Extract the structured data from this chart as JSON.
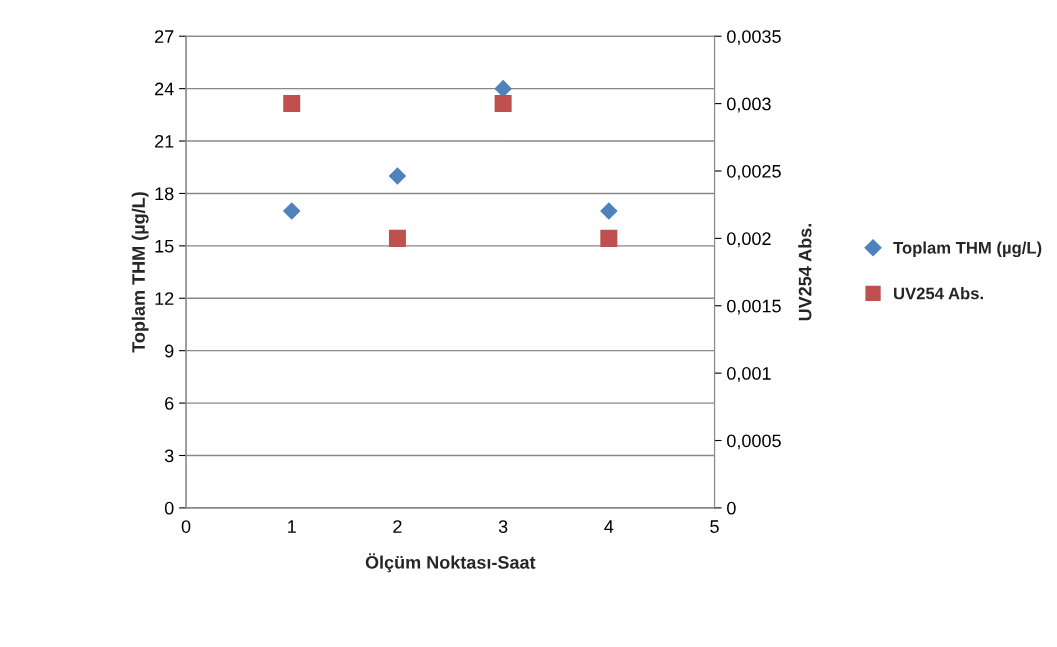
{
  "chart_data": {
    "type": "scatter",
    "xlabel": "Ölçüm Noktası-Saat",
    "ylabel": "Toplam THM (µg/L)",
    "y2label": "UV254 Abs.",
    "x": [
      1,
      2,
      3,
      4
    ],
    "series": [
      {
        "name": "Toplam THM (µg/L)",
        "color": "#4f81bd",
        "marker": "diamond",
        "values": [
          17,
          19,
          24,
          17
        ]
      },
      {
        "name": "UV254 Abs.",
        "color": "#c0504d",
        "marker": "square",
        "axis": "y2",
        "values": [
          0.003,
          0.002,
          0.003,
          0.002
        ]
      }
    ],
    "xlim": [
      0,
      5
    ],
    "xticks": [
      0,
      1,
      2,
      3,
      4,
      5
    ],
    "ylim": [
      0,
      27
    ],
    "yticks": [
      0,
      3,
      6,
      9,
      12,
      15,
      18,
      21,
      24,
      27
    ],
    "y2lim": [
      0,
      0.0035
    ],
    "y2ticks": [
      0,
      {
        "value": 0.0005,
        "label": "0,0005"
      },
      {
        "value": 0.001,
        "label": "0,001"
      },
      {
        "value": 0.0015,
        "label": "0,0015"
      },
      {
        "value": 0.002,
        "label": "0,002"
      },
      {
        "value": 0.0025,
        "label": "0,0025"
      },
      {
        "value": 0.003,
        "label": "0,003"
      },
      {
        "value": 0.0035,
        "label": "0,0035"
      }
    ],
    "grid": "y",
    "legend": "right"
  }
}
